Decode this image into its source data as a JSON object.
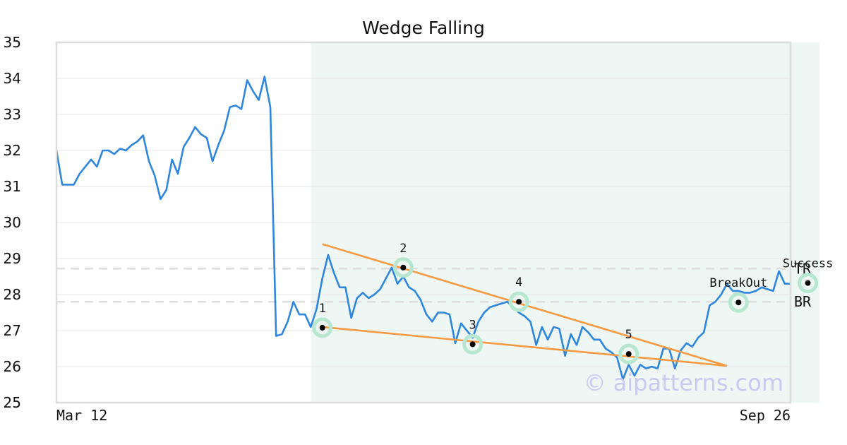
{
  "chart_data": {
    "type": "line",
    "title": "Wedge Falling",
    "xlabel": "",
    "ylabel": "",
    "ylim": [
      25,
      35
    ],
    "yticks": [
      25,
      26,
      27,
      28,
      29,
      30,
      31,
      32,
      33,
      34,
      35
    ],
    "x_tick_labels": [
      "Mar 12",
      "Sep 26"
    ],
    "grid": "horizontal",
    "series": [
      {
        "color": "#2e86de",
        "values": [
          32.0,
          31.05,
          31.05,
          31.05,
          31.35,
          31.55,
          31.75,
          31.55,
          32.0,
          32.0,
          31.9,
          32.05,
          32.0,
          32.15,
          32.25,
          32.42,
          31.7,
          31.3,
          30.65,
          30.9,
          31.75,
          31.35,
          32.1,
          32.35,
          32.65,
          32.45,
          32.35,
          31.7,
          32.15,
          32.55,
          33.2,
          33.25,
          33.15,
          33.95,
          33.65,
          33.4,
          34.05,
          33.2,
          26.85,
          26.9,
          27.25,
          27.8,
          27.45,
          27.45,
          27.1,
          27.6,
          28.45,
          29.1,
          28.6,
          28.2,
          28.2,
          27.35,
          27.9,
          28.05,
          27.9,
          28.0,
          28.15,
          28.45,
          28.75,
          28.3,
          28.5,
          28.2,
          28.1,
          27.85,
          27.45,
          27.25,
          27.5,
          27.5,
          27.45,
          26.65,
          27.2,
          27.0,
          26.8,
          27.25,
          27.5,
          27.65,
          27.7,
          27.75,
          27.8,
          27.65,
          27.5,
          27.4,
          27.25,
          26.6,
          27.1,
          26.75,
          27.1,
          27.05,
          26.3,
          26.9,
          26.6,
          27.1,
          26.95,
          26.75,
          26.75,
          26.5,
          26.4,
          26.25,
          25.65,
          26.05,
          25.75,
          26.05,
          25.95,
          26.0,
          25.95,
          26.5,
          26.5,
          25.95,
          26.45,
          26.65,
          26.55,
          26.8,
          26.95,
          27.7,
          27.8,
          28.0,
          28.3,
          28.1,
          28.1,
          28.05,
          28.05,
          28.1,
          28.2,
          28.15,
          28.1,
          28.65,
          28.3,
          28.3
        ]
      }
    ],
    "pattern_region": {
      "start_index": 44,
      "end_index": 132,
      "color": "#eef7f3"
    },
    "trend_lines": [
      {
        "color": "#f59a42",
        "start": {
          "index": 46,
          "value": 29.4
        },
        "end": {
          "index": 116,
          "value": 26.02
        }
      },
      {
        "color": "#f59a42",
        "start": {
          "index": 46,
          "value": 27.1
        },
        "end": {
          "index": 116,
          "value": 26.02
        }
      }
    ],
    "levels": [
      {
        "label": "TR",
        "value": 28.72
      },
      {
        "label": "BR",
        "value": 27.8
      }
    ],
    "points": [
      {
        "label": "1",
        "index": 46,
        "value": 27.08
      },
      {
        "label": "2",
        "index": 60,
        "value": 28.75
      },
      {
        "label": "3",
        "index": 72,
        "value": 26.62
      },
      {
        "label": "4",
        "index": 80,
        "value": 27.8
      },
      {
        "label": "5",
        "index": 99,
        "value": 26.35
      },
      {
        "label": "BreakOut",
        "index": 118,
        "value": 27.78
      },
      {
        "label": "Success",
        "index": 130,
        "value": 28.32
      }
    ],
    "watermark": "© aipatterns.com"
  }
}
